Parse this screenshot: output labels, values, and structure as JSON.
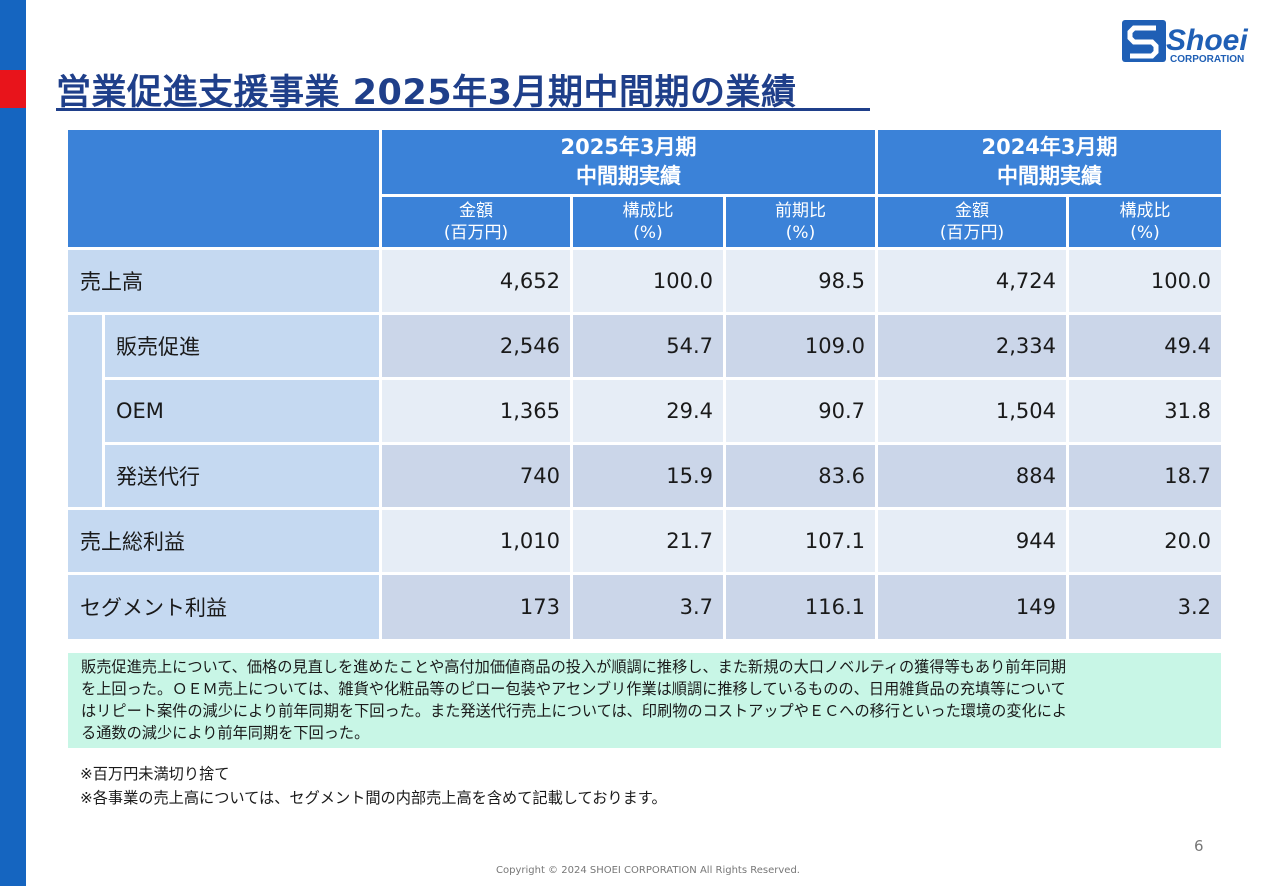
{
  "title": "営業促進支援事業 2025年3月期中間期の業績",
  "logo": {
    "text": "Shoei",
    "subtext": "CORPORATION",
    "brand_color": "#1f5fb5"
  },
  "colors": {
    "header": "#3b82d8",
    "label_bg": "#c5d9f1",
    "row_a": "#e6edf6",
    "row_b": "#cbd6e9",
    "note_bg": "#c8f6e6",
    "title": "#1f3f8a",
    "side_bar": "#1565c0",
    "side_accent": "#e8141b"
  },
  "table": {
    "groups": [
      {
        "line1": "2025年3月期",
        "line2": "中間期実績"
      },
      {
        "line1": "2024年3月期",
        "line2": "中間期実績"
      }
    ],
    "columns": [
      {
        "line1": "金額",
        "line2": "(百万円)"
      },
      {
        "line1": "構成比",
        "line2": "(%)"
      },
      {
        "line1": "前期比",
        "line2": "(%)"
      },
      {
        "line1": "金額",
        "line2": "(百万円)"
      },
      {
        "line1": "構成比",
        "line2": "(%)"
      }
    ],
    "rows": [
      {
        "label": "売上高",
        "values": [
          "4,652",
          "100.0",
          "98.5",
          "4,724",
          "100.0"
        ]
      },
      {
        "label": "販売促進",
        "values": [
          "2,546",
          "54.7",
          "109.0",
          "2,334",
          "49.4"
        ]
      },
      {
        "label": "OEM",
        "values": [
          "1,365",
          "29.4",
          "90.7",
          "1,504",
          "31.8"
        ]
      },
      {
        "label": "発送代行",
        "values": [
          "740",
          "15.9",
          "83.6",
          "884",
          "18.7"
        ]
      },
      {
        "label": "売上総利益",
        "values": [
          "1,010",
          "21.7",
          "107.1",
          "944",
          "20.0"
        ]
      },
      {
        "label": "セグメント利益",
        "values": [
          "173",
          "3.7",
          "116.1",
          "149",
          "3.2"
        ]
      }
    ]
  },
  "note": {
    "lines": [
      "販売促進売上について、価格の見直しを進めたことや高付加価値商品の投入が順調に推移し、また新規の大口ノベルティの獲得等もあり前年同期",
      "を上回った。ＯＥＭ売上については、雑貨や化粧品等のピロー包装やアセンブリ作業は順調に推移しているものの、日用雑貨品の充填等について",
      "はリピート案件の減少により前年同期を下回った。また発送代行売上については、印刷物のコストアップやＥＣへの移行といった環境の変化によ",
      "る通数の減少により前年同期を下回った。"
    ]
  },
  "footnotes": [
    "※百万円未満切り捨て",
    "※各事業の売上高については、セグメント間の内部売上高を含めて記載しております。"
  ],
  "page_number": "6",
  "copyright": "Copyright © 2024 SHOEI CORPORATION All Rights Reserved."
}
